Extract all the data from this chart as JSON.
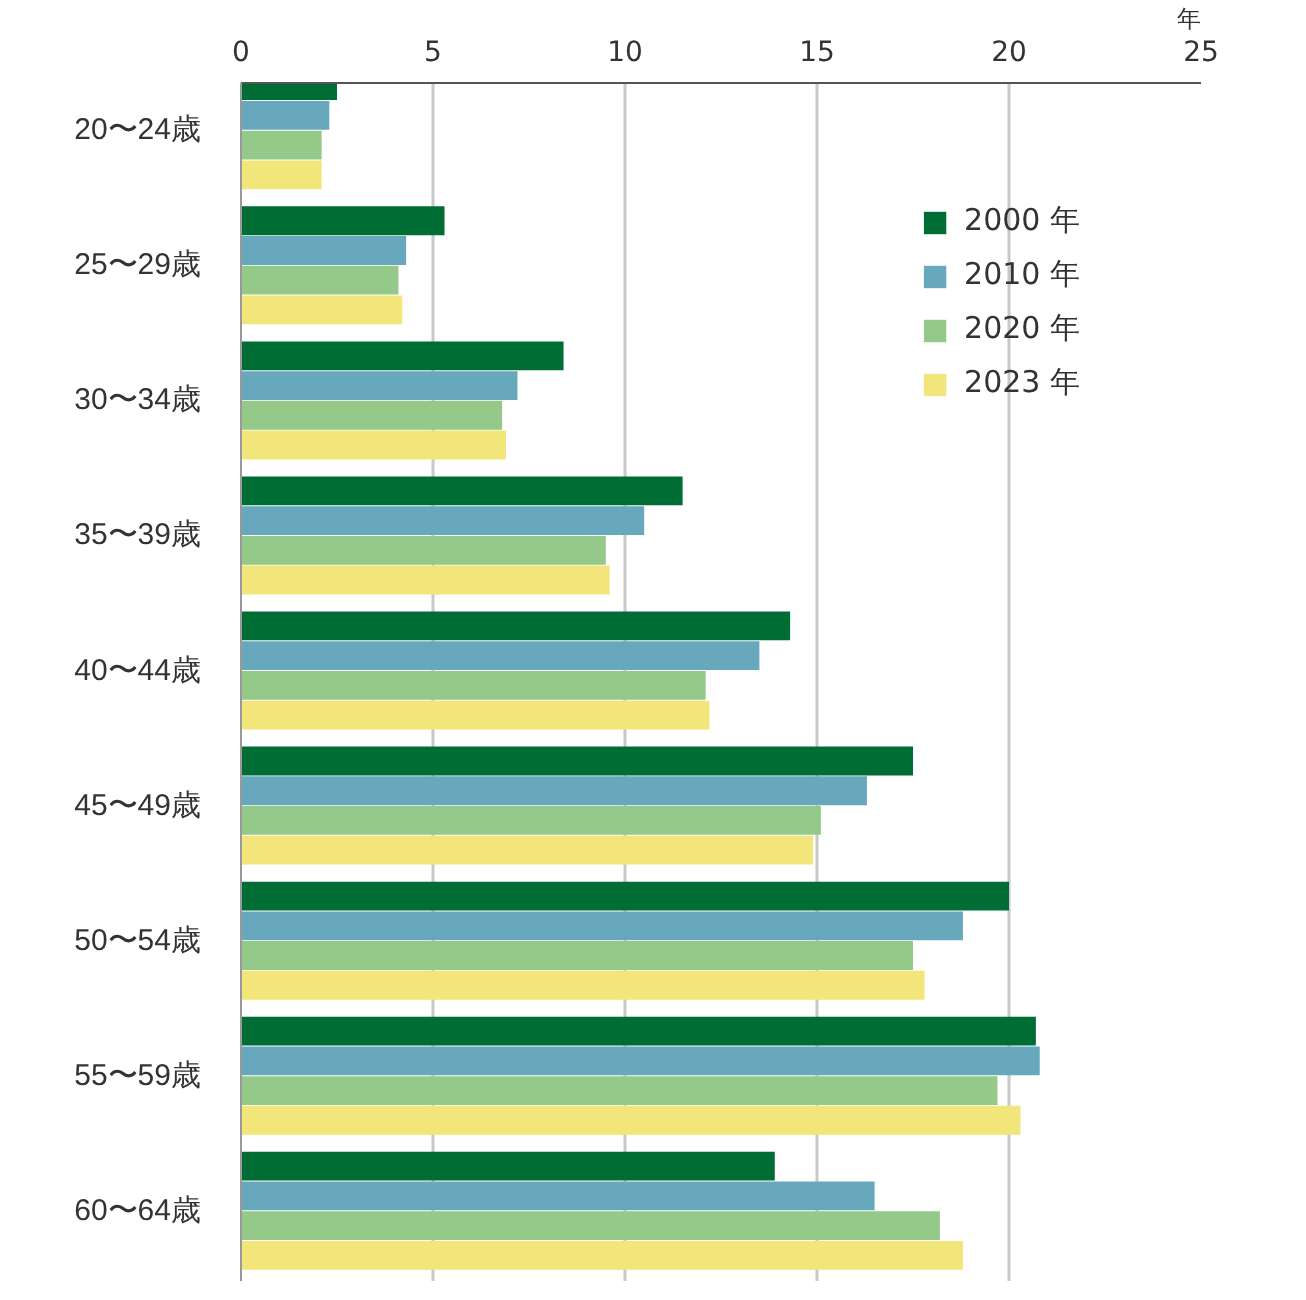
{
  "chart_data": {
    "type": "bar",
    "orientation": "horizontal",
    "xlabel": "年",
    "categories": [
      "20〜24歳",
      "25〜29歳",
      "30〜34歳",
      "35〜39歳",
      "40〜44歳",
      "45〜49歳",
      "50〜54歳",
      "55〜59歳",
      "60〜64歳"
    ],
    "series": [
      {
        "name": "2000 年",
        "color": "#006d35",
        "values": [
          2.5,
          5.3,
          8.4,
          11.5,
          14.3,
          17.5,
          20.0,
          20.7,
          13.9
        ]
      },
      {
        "name": "2010 年",
        "color": "#67a8bd",
        "values": [
          2.3,
          4.3,
          7.2,
          10.5,
          13.5,
          16.3,
          18.8,
          20.8,
          16.5
        ]
      },
      {
        "name": "2020 年",
        "color": "#94c98a",
        "values": [
          2.1,
          4.1,
          6.8,
          9.5,
          12.1,
          15.1,
          17.5,
          19.7,
          18.2
        ]
      },
      {
        "name": "2023 年",
        "color": "#f2e57a",
        "values": [
          2.1,
          4.2,
          6.9,
          9.6,
          12.2,
          14.9,
          17.8,
          20.3,
          18.8
        ]
      }
    ],
    "xlim": [
      0,
      25
    ],
    "xticks": [
      0,
      5,
      10,
      15,
      20,
      25
    ],
    "grid": "x",
    "legend": "top right"
  }
}
